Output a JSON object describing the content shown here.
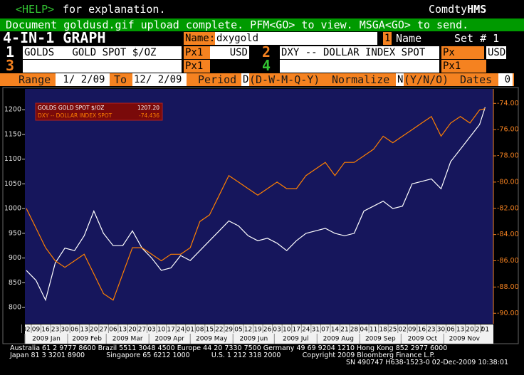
{
  "header": {
    "help_key": "<HELP>",
    "help_text": "for explanation.",
    "source": "Comdty",
    "source_bold": "HMS"
  },
  "message": "Document goldusd.gif upload complete. PFM<GO> to view. MSGA<GO> to send.",
  "form": {
    "title": "4-IN-1 GRAPH",
    "name_label": "Name:",
    "name_value": "dxygold",
    "name_index": "1",
    "name_hint": "Name",
    "set_label": "Set # 1",
    "securities": [
      {
        "number": "1",
        "ticker": "GOLDS   GOLD SPOT $/OZ",
        "price_field": "Px1",
        "currency": "USD"
      },
      {
        "number": "2",
        "ticker": "DXY -- DOLLAR INDEX SPOT",
        "price_field": "Px",
        "currency": "USD"
      },
      {
        "number": "3",
        "price_field": "Px1"
      },
      {
        "number": "4",
        "price_field": "Px1"
      }
    ]
  },
  "range": {
    "range_label": "Range",
    "start": " 1/ 2/09",
    "to_label": "To",
    "end": "12/ 2/09",
    "period_label": "Period",
    "period_value": "D",
    "period_options": "(D-W-M-Q-Y)",
    "normalize_label": "Normalize",
    "normalize_value": "N",
    "normalize_options": "(Y/N/O)",
    "dates_label": "Dates",
    "dates_value": "0"
  },
  "chart_data": {
    "type": "line",
    "grid": false,
    "x": [
      "2009-01-02",
      "2009-01-09",
      "2009-01-16",
      "2009-01-23",
      "2009-01-30",
      "2009-02-06",
      "2009-02-13",
      "2009-02-20",
      "2009-02-27",
      "2009-03-06",
      "2009-03-13",
      "2009-03-20",
      "2009-03-27",
      "2009-04-03",
      "2009-04-10",
      "2009-04-17",
      "2009-04-24",
      "2009-05-01",
      "2009-05-08",
      "2009-05-15",
      "2009-05-22",
      "2009-05-29",
      "2009-06-05",
      "2009-06-12",
      "2009-06-19",
      "2009-06-26",
      "2009-07-03",
      "2009-07-10",
      "2009-07-17",
      "2009-07-24",
      "2009-07-31",
      "2009-08-07",
      "2009-08-14",
      "2009-08-21",
      "2009-08-28",
      "2009-09-04",
      "2009-09-11",
      "2009-09-18",
      "2009-09-25",
      "2009-10-02",
      "2009-10-09",
      "2009-10-16",
      "2009-10-23",
      "2009-10-30",
      "2009-11-06",
      "2009-11-13",
      "2009-11-20",
      "2009-11-27",
      "2009-12-01"
    ],
    "series": [
      {
        "name": "GOLDS  GOLD SPOT $/OZ",
        "color": "#ffffff",
        "last_label": "1207.20",
        "values": [
          875,
          855,
          815,
          890,
          920,
          915,
          945,
          995,
          950,
          925,
          925,
          955,
          920,
          900,
          875,
          880,
          905,
          895,
          915,
          935,
          955,
          975,
          965,
          945,
          935,
          940,
          930,
          915,
          935,
          950,
          955,
          960,
          950,
          945,
          950,
          995,
          1005,
          1015,
          1000,
          1005,
          1050,
          1055,
          1060,
          1040,
          1095,
          1120,
          1145,
          1170,
          1205
        ]
      },
      {
        "name": "DXY -- DOLLAR INDEX SPOT",
        "color": "#ff8000",
        "axis": "y2",
        "last_label": "-74.436",
        "values": [
          -82.0,
          -83.5,
          -85.0,
          -86.0,
          -86.5,
          -86.0,
          -85.5,
          -87.0,
          -88.5,
          -89.0,
          -87.0,
          -85.0,
          -85.0,
          -85.5,
          -86.0,
          -85.5,
          -85.5,
          -85.0,
          -83.0,
          -82.5,
          -81.0,
          -79.5,
          -80.0,
          -80.5,
          -81.0,
          -80.5,
          -80.0,
          -80.5,
          -80.5,
          -79.5,
          -79.0,
          -78.5,
          -79.5,
          -78.5,
          -78.5,
          -78.0,
          -77.5,
          -76.5,
          -77.0,
          -76.5,
          -76.0,
          -75.5,
          -75.0,
          -76.5,
          -75.5,
          -75.0,
          -75.5,
          -74.5,
          -74.4
        ]
      }
    ],
    "xlim": [
      "2009-01-01",
      "2009-12-07"
    ],
    "xticks": [
      {
        "value": "2009-01-02",
        "label": "02"
      },
      {
        "value": "2009-01-09",
        "label": "09"
      },
      {
        "value": "2009-01-16",
        "label": "16"
      },
      {
        "value": "2009-01-23",
        "label": "23"
      },
      {
        "value": "2009-01-30",
        "label": "30"
      },
      {
        "value": "2009-02-06",
        "label": "06"
      },
      {
        "value": "2009-02-13",
        "label": "13"
      },
      {
        "value": "2009-02-20",
        "label": "20"
      },
      {
        "value": "2009-02-27",
        "label": "27"
      },
      {
        "value": "2009-03-06",
        "label": "06"
      },
      {
        "value": "2009-03-13",
        "label": "13"
      },
      {
        "value": "2009-03-20",
        "label": "20"
      },
      {
        "value": "2009-03-27",
        "label": "27"
      },
      {
        "value": "2009-04-03",
        "label": "03"
      },
      {
        "value": "2009-04-10",
        "label": "10"
      },
      {
        "value": "2009-04-17",
        "label": "17"
      },
      {
        "value": "2009-04-24",
        "label": "24"
      },
      {
        "value": "2009-05-01",
        "label": "01"
      },
      {
        "value": "2009-05-08",
        "label": "08"
      },
      {
        "value": "2009-05-15",
        "label": "15"
      },
      {
        "value": "2009-05-22",
        "label": "22"
      },
      {
        "value": "2009-05-29",
        "label": "29"
      },
      {
        "value": "2009-06-05",
        "label": "05"
      },
      {
        "value": "2009-06-12",
        "label": "12"
      },
      {
        "value": "2009-06-19",
        "label": "19"
      },
      {
        "value": "2009-06-26",
        "label": "26"
      },
      {
        "value": "2009-07-03",
        "label": "03"
      },
      {
        "value": "2009-07-10",
        "label": "10"
      },
      {
        "value": "2009-07-17",
        "label": "17"
      },
      {
        "value": "2009-07-24",
        "label": "24"
      },
      {
        "value": "2009-07-31",
        "label": "31"
      },
      {
        "value": "2009-08-07",
        "label": "07"
      },
      {
        "value": "2009-08-14",
        "label": "14"
      },
      {
        "value": "2009-08-21",
        "label": "21"
      },
      {
        "value": "2009-08-28",
        "label": "28"
      },
      {
        "value": "2009-09-04",
        "label": "04"
      },
      {
        "value": "2009-09-11",
        "label": "11"
      },
      {
        "value": "2009-09-18",
        "label": "18"
      },
      {
        "value": "2009-09-25",
        "label": "25"
      },
      {
        "value": "2009-10-02",
        "label": "02"
      },
      {
        "value": "2009-10-09",
        "label": "09"
      },
      {
        "value": "2009-10-16",
        "label": "16"
      },
      {
        "value": "2009-10-23",
        "label": "23"
      },
      {
        "value": "2009-10-30",
        "label": "30"
      },
      {
        "value": "2009-11-06",
        "label": "06"
      },
      {
        "value": "2009-11-13",
        "label": "13"
      },
      {
        "value": "2009-11-20",
        "label": "20"
      },
      {
        "value": "2009-11-27",
        "label": "27"
      },
      {
        "value": "2009-12-01",
        "label": "01"
      }
    ],
    "month_ticks": [
      {
        "value": "2009-01-01",
        "label": "2009 Jan"
      },
      {
        "value": "2009-02-01",
        "label": "2009 Feb"
      },
      {
        "value": "2009-03-01",
        "label": "2009 Mar"
      },
      {
        "value": "2009-04-01",
        "label": "2009 Apr"
      },
      {
        "value": "2009-05-01",
        "label": "2009 May"
      },
      {
        "value": "2009-06-01",
        "label": "2009 Jun"
      },
      {
        "value": "2009-07-01",
        "label": "2009 Jul"
      },
      {
        "value": "2009-08-01",
        "label": "2009 Aug"
      },
      {
        "value": "2009-09-01",
        "label": "2009 Sep"
      },
      {
        "value": "2009-10-01",
        "label": "2009 Oct"
      },
      {
        "value": "2009-11-01",
        "label": "2009 Nov"
      }
    ],
    "ylim": [
      767,
      1242
    ],
    "yticks": [
      800,
      850,
      900,
      950,
      1000,
      1050,
      1100,
      1150,
      1200
    ],
    "y2lim": [
      -90.8,
      -72.9
    ],
    "y2ticks": [
      {
        "value": -90,
        "label": "-90.00"
      },
      {
        "value": -88,
        "label": "-88.00"
      },
      {
        "value": -86,
        "label": "-86.00"
      },
      {
        "value": -84,
        "label": "-84.00"
      },
      {
        "value": -82,
        "label": "-82.00"
      },
      {
        "value": -80,
        "label": "-80.00"
      },
      {
        "value": -78,
        "label": "-78.00"
      },
      {
        "value": -76,
        "label": "-76.00"
      },
      {
        "value": -74,
        "label": "-74.00"
      }
    ]
  },
  "footer": {
    "lines": [
      "Australia 61 2 9777 8600 Brazil 5511 3048 4500 Europe 44 20 7330 7500 Germany 49 69 9204 1210 Hong Kong 852 2977 6000",
      "Japan 81 3 3201 8900          Singapore 65 6212 1000          U.S. 1 212 318 2000          Copyright 2009 Bloomberg Finance L.P."
    ],
    "session": "SN 490747 H638-1523-0 02-Dec-2009 10:38:01"
  }
}
